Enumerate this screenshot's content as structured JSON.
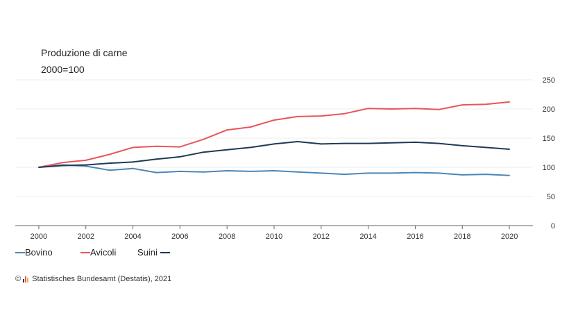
{
  "chart_data": {
    "type": "line",
    "title": "Produzione di carne",
    "subtitle": "2000=100",
    "x": [
      2000,
      2001,
      2002,
      2003,
      2004,
      2005,
      2006,
      2007,
      2008,
      2009,
      2010,
      2011,
      2012,
      2013,
      2014,
      2015,
      2016,
      2017,
      2018,
      2019,
      2020
    ],
    "x_ticks": [
      "2000",
      "2002",
      "2004",
      "2006",
      "2008",
      "2010",
      "2012",
      "2014",
      "2016",
      "2018",
      "2020"
    ],
    "y_ticks": [
      "0",
      "50",
      "100",
      "150",
      "200",
      "250"
    ],
    "ylim": [
      0,
      250
    ],
    "xlim": [
      1999,
      2021
    ],
    "y_axis_position": "right",
    "grid": true,
    "legend_position": "bottom-left",
    "series": [
      {
        "name": "Bovino",
        "color": "#4a86b8",
        "values": [
          100,
          104,
          102,
          95,
          98,
          91,
          93,
          92,
          94,
          93,
          94,
          92,
          90,
          88,
          90,
          90,
          91,
          90,
          87,
          88,
          86
        ]
      },
      {
        "name": "Avicoli",
        "color": "#e8555a",
        "values": [
          100,
          108,
          112,
          122,
          134,
          136,
          135,
          148,
          164,
          169,
          181,
          187,
          188,
          192,
          201,
          200,
          201,
          199,
          207,
          208,
          212
        ]
      },
      {
        "name": "Suini",
        "color": "#1e3a56",
        "values": [
          100,
          103,
          104,
          107,
          109,
          114,
          118,
          126,
          130,
          134,
          140,
          144,
          140,
          141,
          141,
          142,
          143,
          141,
          137,
          134,
          131
        ]
      }
    ]
  },
  "source": {
    "copyright": "©",
    "text": "Statistisches Bundesamt (Destatis), 2021"
  }
}
